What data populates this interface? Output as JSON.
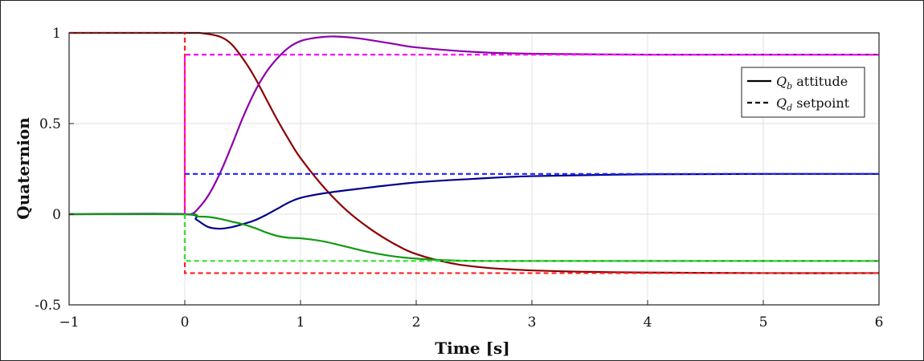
{
  "chart_data": {
    "type": "line",
    "title": "",
    "xlabel": "Time [s]",
    "ylabel": "Quaternion",
    "xlim": [
      -1,
      6
    ],
    "ylim": [
      -0.5,
      1
    ],
    "x_ticks": [
      -1,
      0,
      1,
      2,
      3,
      4,
      5,
      6
    ],
    "x_tick_labels": [
      "−1",
      "0",
      "1",
      "2",
      "3",
      "4",
      "5",
      "6"
    ],
    "y_ticks": [
      -0.5,
      0,
      0.5,
      1
    ],
    "y_tick_labels": [
      "-0.5",
      "0",
      "0.5",
      "1"
    ],
    "grid": true,
    "legend_placement": "top-right",
    "legend": [
      {
        "style": "solid",
        "label_main": "Q",
        "label_sub": "b",
        "label_rest": " attitude"
      },
      {
        "style": "dashed",
        "label_main": "Q",
        "label_sub": "d",
        "label_rest": " setpoint"
      }
    ],
    "series": [
      {
        "color": "#8B0000",
        "style": "solid",
        "x": [
          -1,
          0,
          0.15,
          0.3,
          0.4,
          0.5,
          0.6,
          0.7,
          0.8,
          0.9,
          1.0,
          1.2,
          1.4,
          1.6,
          1.8,
          2.0,
          2.3,
          2.6,
          3.0,
          3.5,
          4,
          5,
          6
        ],
        "y": [
          1,
          1,
          0.998,
          0.98,
          0.94,
          0.86,
          0.76,
          0.64,
          0.52,
          0.41,
          0.31,
          0.15,
          0.02,
          -0.08,
          -0.16,
          -0.22,
          -0.27,
          -0.295,
          -0.31,
          -0.318,
          -0.322,
          -0.325,
          -0.325
        ]
      },
      {
        "color": "#FF2020",
        "style": "dashed",
        "x": [
          -1,
          0,
          0,
          6
        ],
        "y": [
          1,
          1,
          -0.325,
          -0.325
        ]
      },
      {
        "color": "#8B00A8",
        "style": "solid",
        "x": [
          -1,
          0,
          0.05,
          0.1,
          0.2,
          0.3,
          0.4,
          0.5,
          0.6,
          0.7,
          0.8,
          0.9,
          1.0,
          1.1,
          1.2,
          1.3,
          1.5,
          1.8,
          2.0,
          2.5,
          3,
          4,
          5,
          6
        ],
        "y": [
          0,
          0,
          0.0,
          0.02,
          0.1,
          0.22,
          0.37,
          0.53,
          0.67,
          0.78,
          0.86,
          0.92,
          0.955,
          0.97,
          0.978,
          0.98,
          0.97,
          0.94,
          0.92,
          0.895,
          0.885,
          0.88,
          0.88,
          0.88
        ]
      },
      {
        "color": "#FF00FF",
        "style": "dashed",
        "x": [
          0,
          0,
          6
        ],
        "y": [
          0,
          0.88,
          0.88
        ]
      },
      {
        "color": "#00008B",
        "style": "solid",
        "x": [
          -1,
          0,
          0.1,
          0.2,
          0.3,
          0.4,
          0.5,
          0.6,
          0.7,
          0.8,
          0.9,
          1.0,
          1.2,
          1.5,
          2.0,
          2.5,
          3,
          4,
          5,
          6
        ],
        "y": [
          0,
          0,
          -0.03,
          -0.07,
          -0.08,
          -0.072,
          -0.055,
          -0.035,
          -0.005,
          0.03,
          0.065,
          0.09,
          0.115,
          0.14,
          0.175,
          0.195,
          0.21,
          0.22,
          0.222,
          0.222
        ]
      },
      {
        "color": "#2020FF",
        "style": "dashed",
        "x": [
          0,
          6
        ],
        "y": [
          0.222,
          0.222
        ]
      },
      {
        "color": "#109A10",
        "style": "solid",
        "x": [
          -1,
          0,
          0.1,
          0.2,
          0.3,
          0.4,
          0.5,
          0.6,
          0.7,
          0.8,
          0.9,
          1.0,
          1.2,
          1.4,
          1.6,
          1.8,
          2.0,
          2.3,
          2.6,
          3,
          4,
          5,
          6
        ],
        "y": [
          0,
          0,
          -0.012,
          -0.015,
          -0.025,
          -0.04,
          -0.055,
          -0.075,
          -0.1,
          -0.12,
          -0.13,
          -0.133,
          -0.15,
          -0.18,
          -0.21,
          -0.232,
          -0.245,
          -0.255,
          -0.258,
          -0.258,
          -0.258,
          -0.258,
          -0.258
        ]
      },
      {
        "color": "#30E030",
        "style": "dashed",
        "x": [
          0,
          0,
          6
        ],
        "y": [
          0,
          -0.258,
          -0.258
        ]
      }
    ]
  }
}
